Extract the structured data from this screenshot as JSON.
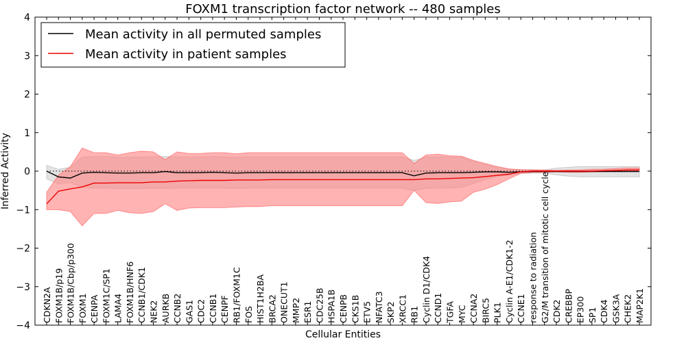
{
  "chart_data": {
    "type": "line",
    "title": "FOXM1 transcription factor network -- 480 samples",
    "xlabel": "Cellular Entities",
    "ylabel": "Inferred Activity",
    "ylim": [
      -4,
      4
    ],
    "yticks": [
      -4,
      -3,
      -2,
      -1,
      0,
      1,
      2,
      3,
      4
    ],
    "ytick_labels": [
      "−4",
      "−3",
      "−2",
      "−1",
      "0",
      "1",
      "2",
      "3",
      "4"
    ],
    "grid": false,
    "legend_position": "top-left",
    "reference_line": 0,
    "colors": {
      "permuted": "#000000",
      "permuted_band": "#cccccc",
      "patient": "#ee0000",
      "patient_band": "#ff8080"
    },
    "categories": [
      "CDKN2A",
      "FOXM1B/p19",
      "FOXM1B/Cbp/p300",
      "FOXM1",
      "CENPA",
      "FOXM1C/SP1",
      "LAMA4",
      "FOXM1B/HNF6",
      "CCNB1/CDK1",
      "NEK2",
      "AURKB",
      "CCNB2",
      "GAS1",
      "CDC2",
      "CCNB1",
      "CENPF",
      "RB1/FOXM1C",
      "FOS",
      "HIST1H2BA",
      "BRCA2",
      "ONECUT1",
      "MMP2",
      "ESR1",
      "CDC25B",
      "HSPA1B",
      "CENPB",
      "CKS1B",
      "ETV5",
      "NFATC3",
      "SKP2",
      "XRCC1",
      "RB1",
      "Cyclin D1/CDK4",
      "CCND1",
      "TGFA",
      "MYC",
      "CCNA2",
      "BIRC5",
      "PLK1",
      "Cyclin A-E1/CDK1-2",
      "CCNE1",
      "response to radiation",
      "G2/M transition of mitotic cell cycle",
      "CDK2",
      "CREBBP",
      "EP300",
      "SP1",
      "CDK4",
      "GSK3A",
      "CHEK2",
      "MAP2K1"
    ],
    "series": [
      {
        "name": "Mean activity in all permuted samples",
        "key": "permuted",
        "values": [
          0.0,
          -0.15,
          -0.18,
          -0.05,
          -0.03,
          -0.04,
          -0.05,
          -0.05,
          -0.04,
          -0.04,
          -0.01,
          -0.04,
          -0.04,
          -0.04,
          -0.03,
          -0.04,
          -0.05,
          -0.04,
          -0.04,
          -0.04,
          -0.04,
          -0.04,
          -0.04,
          -0.04,
          -0.04,
          -0.04,
          -0.04,
          -0.04,
          -0.04,
          -0.04,
          -0.04,
          -0.12,
          -0.05,
          -0.04,
          -0.04,
          -0.04,
          -0.03,
          -0.02,
          -0.02,
          -0.03,
          -0.02,
          -0.01,
          -0.01,
          -0.01,
          -0.01,
          -0.01,
          -0.01,
          -0.01,
          -0.01,
          -0.01,
          -0.01
        ],
        "band_low": [
          -0.2,
          -0.33,
          -0.3,
          -0.42,
          -0.44,
          -0.44,
          -0.45,
          -0.45,
          -0.45,
          -0.44,
          -0.45,
          -0.44,
          -0.44,
          -0.44,
          -0.44,
          -0.44,
          -0.45,
          -0.44,
          -0.44,
          -0.44,
          -0.44,
          -0.44,
          -0.44,
          -0.44,
          -0.44,
          -0.44,
          -0.44,
          -0.44,
          -0.44,
          -0.44,
          -0.44,
          -0.5,
          -0.45,
          -0.44,
          -0.44,
          -0.42,
          -0.32,
          -0.22,
          -0.14,
          -0.1,
          -0.06,
          -0.05,
          -0.05,
          -0.1,
          -0.13,
          -0.15,
          -0.15,
          -0.15,
          -0.15,
          -0.15,
          -0.15
        ],
        "band_high": [
          0.15,
          0.05,
          0.1,
          0.36,
          0.38,
          0.38,
          0.36,
          0.36,
          0.37,
          0.37,
          0.38,
          0.37,
          0.37,
          0.37,
          0.38,
          0.37,
          0.36,
          0.37,
          0.37,
          0.37,
          0.37,
          0.37,
          0.37,
          0.37,
          0.37,
          0.37,
          0.37,
          0.37,
          0.37,
          0.37,
          0.37,
          0.28,
          0.36,
          0.37,
          0.37,
          0.36,
          0.25,
          0.17,
          0.09,
          0.05,
          0.04,
          0.04,
          0.03,
          0.08,
          0.1,
          0.12,
          0.12,
          0.12,
          0.12,
          0.12,
          0.12
        ]
      },
      {
        "name": "Mean activity in patient samples",
        "key": "patient",
        "values": [
          -0.85,
          -0.52,
          -0.46,
          -0.41,
          -0.31,
          -0.31,
          -0.3,
          -0.3,
          -0.3,
          -0.28,
          -0.28,
          -0.26,
          -0.25,
          -0.24,
          -0.24,
          -0.24,
          -0.23,
          -0.23,
          -0.23,
          -0.22,
          -0.22,
          -0.22,
          -0.22,
          -0.22,
          -0.22,
          -0.22,
          -0.22,
          -0.22,
          -0.22,
          -0.22,
          -0.22,
          -0.22,
          -0.2,
          -0.2,
          -0.19,
          -0.18,
          -0.17,
          -0.14,
          -0.11,
          -0.08,
          -0.02,
          0.0,
          0.0,
          0.0,
          0.0,
          0.0,
          0.0,
          0.01,
          0.02,
          0.03,
          0.03
        ],
        "band_low": [
          -1.0,
          -1.0,
          -1.05,
          -1.42,
          -1.1,
          -1.1,
          -1.02,
          -1.08,
          -1.1,
          -1.05,
          -0.85,
          -1.02,
          -0.96,
          -0.95,
          -0.95,
          -0.95,
          -0.93,
          -0.92,
          -0.92,
          -0.9,
          -0.9,
          -0.9,
          -0.9,
          -0.9,
          -0.9,
          -0.9,
          -0.9,
          -0.9,
          -0.9,
          -0.9,
          -0.9,
          -0.5,
          -0.82,
          -0.84,
          -0.8,
          -0.78,
          -0.55,
          -0.47,
          -0.35,
          -0.2,
          -0.06,
          -0.03,
          -0.03,
          -0.02,
          -0.03,
          -0.03,
          -0.02,
          -0.01,
          0.0,
          0.01,
          0.01
        ],
        "band_high": [
          -0.55,
          -0.1,
          0.12,
          0.6,
          0.48,
          0.48,
          0.42,
          0.48,
          0.52,
          0.5,
          0.3,
          0.5,
          0.46,
          0.46,
          0.48,
          0.48,
          0.45,
          0.48,
          0.48,
          0.48,
          0.48,
          0.48,
          0.48,
          0.48,
          0.48,
          0.48,
          0.48,
          0.48,
          0.48,
          0.48,
          0.48,
          0.2,
          0.42,
          0.44,
          0.4,
          0.39,
          0.28,
          0.2,
          0.12,
          0.06,
          0.04,
          0.03,
          0.03,
          0.02,
          0.03,
          0.03,
          0.05,
          0.05,
          0.07,
          0.08,
          0.08
        ]
      }
    ]
  }
}
